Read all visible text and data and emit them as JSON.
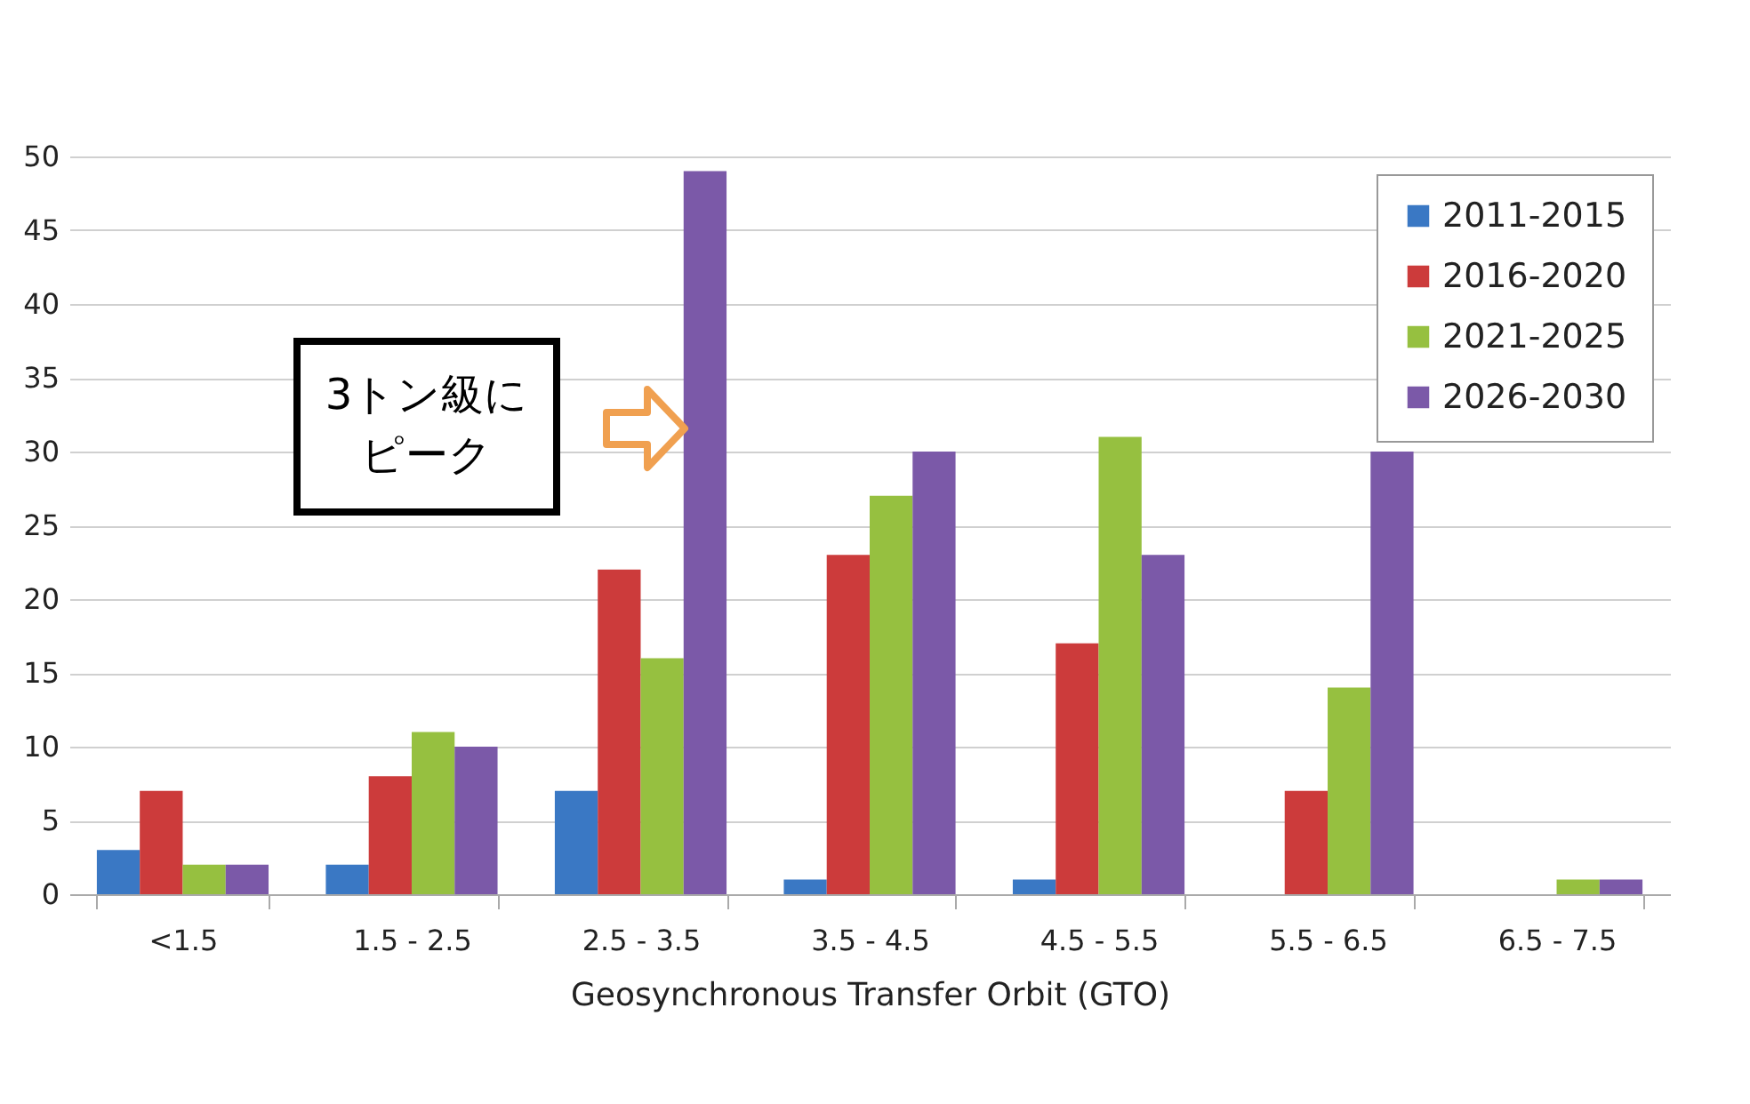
{
  "chart_data": {
    "type": "bar",
    "xlabel": "Geosynchronous Transfer Orbit (GTO)",
    "categories": [
      "<1.5",
      "1.5 - 2.5",
      "2.5 - 3.5",
      "3.5 - 4.5",
      "4.5 - 5.5",
      "5.5 - 6.5",
      "6.5 - 7.5"
    ],
    "series": [
      {
        "name": "2011-2015",
        "color": "#3a78c4",
        "values": [
          3,
          2,
          7,
          1,
          1,
          0,
          0
        ]
      },
      {
        "name": "2016-2020",
        "color": "#cc3b3b",
        "values": [
          7,
          8,
          22,
          23,
          17,
          7,
          0
        ]
      },
      {
        "name": "2021-2025",
        "color": "#96c040",
        "values": [
          2,
          11,
          16,
          27,
          31,
          14,
          1
        ]
      },
      {
        "name": "2026-2030",
        "color": "#7b59a8",
        "values": [
          2,
          10,
          49,
          30,
          23,
          30,
          1
        ]
      }
    ],
    "ylim": [
      0,
      50
    ],
    "yticks": [
      0,
      5,
      10,
      15,
      20,
      25,
      30,
      35,
      40,
      45,
      50
    ],
    "grid": "y",
    "legend": "top right",
    "annotations": [
      "3トン級に",
      "ピーク"
    ]
  }
}
